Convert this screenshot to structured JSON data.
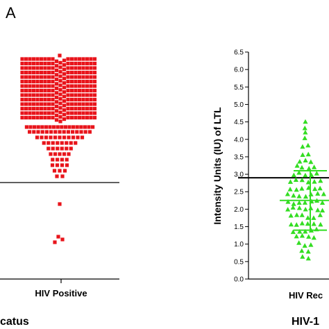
{
  "panel_label": "A",
  "footer": {
    "left_fragment": "catus",
    "right_fragment": "HIV-1"
  },
  "chart_data": [
    {
      "type": "scatter",
      "category_label": "HIV Positive",
      "marker": "square",
      "color": "#e8141b",
      "reference_line": true,
      "y_axis_visible": false,
      "series": [
        {
          "dense_band_rows": 14,
          "sparse_points": 34,
          "outliers": 4
        }
      ]
    },
    {
      "type": "scatter",
      "category_label": "HIV Rec",
      "ylabel": "Intensity Units (IU) of LTL",
      "ylim": [
        0,
        6.5
      ],
      "y_ticks": [
        "0.0",
        "0.5",
        "1.0",
        "1.5",
        "2.0",
        "2.5",
        "3.0",
        "3.5",
        "4.0",
        "4.5",
        "5.0",
        "5.5",
        "6.0",
        "6.5"
      ],
      "marker": "triangle",
      "color": "#33dd22",
      "reference_line_y": 2.9,
      "mean": 2.25,
      "sd_lower": 1.4,
      "sd_upper": 3.1,
      "series": [
        {
          "values_sample": [
            4.5,
            4.35,
            4.2,
            4.0,
            3.8,
            3.6,
            3.4,
            3.2,
            3.0,
            2.8,
            2.6,
            2.4,
            2.2,
            2.0,
            1.8,
            1.6,
            1.4,
            1.2,
            1.0,
            0.8,
            0.6
          ]
        }
      ]
    }
  ]
}
